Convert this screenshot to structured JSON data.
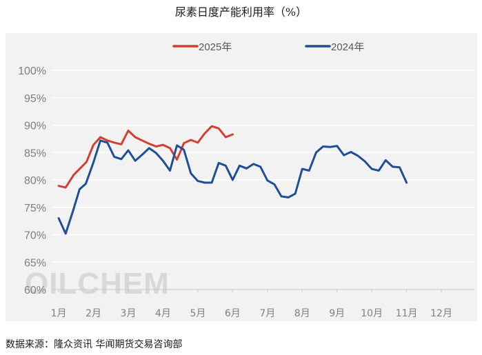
{
  "title": "尿素日度产能利用率（%）",
  "source": "数据来源：隆众资讯  华闻期货交易咨询部",
  "watermark": "OILCHEM",
  "colors": {
    "series_2025": "#d23f31",
    "series_2024": "#1f4e96",
    "grid": "#ffffff",
    "axis": "#c8c8c8",
    "panel": "#f2f2f2"
  },
  "chart_data": {
    "type": "line",
    "title": "尿素日度产能利用率（%）",
    "xlabel": "",
    "ylabel": "",
    "x_categories": [
      "1月",
      "2月",
      "3月",
      "4月",
      "5月",
      "6月",
      "7月",
      "8月",
      "9月",
      "10月",
      "11月",
      "12月"
    ],
    "ylim": [
      60,
      100
    ],
    "y_ticks": [
      60,
      65,
      70,
      75,
      80,
      85,
      90,
      95,
      100
    ],
    "y_tick_labels": [
      "60%",
      "65%",
      "70%",
      "75%",
      "80%",
      "85%",
      "90%",
      "95%",
      "100%"
    ],
    "grid": true,
    "legend_position": "top-center",
    "series": [
      {
        "name": "2025年",
        "color": "#d23f31",
        "x_month": [
          1.0,
          1.2,
          1.43,
          1.8,
          2.0,
          2.2,
          2.4,
          2.6,
          2.8,
          3.0,
          3.2,
          3.4,
          3.6,
          3.8,
          4.0,
          4.2,
          4.4,
          4.6,
          4.8,
          5.0,
          5.2,
          5.4,
          5.6,
          5.8,
          6.0,
          6.2,
          6.4,
          6.6
        ],
        "values": [
          78.9,
          78.6,
          80.9,
          83.3,
          86.4,
          87.8,
          87.2,
          86.8,
          86.5,
          89.0,
          87.8,
          87.2,
          86.6,
          86.1,
          86.4,
          85.8,
          83.7,
          86.7,
          87.3,
          86.8,
          88.5,
          89.8,
          89.4,
          87.8,
          88.3,
          null,
          null,
          null
        ]
      },
      {
        "name": "2024年",
        "color": "#1f4e96",
        "x_month": [
          1.0,
          1.2,
          1.4,
          1.6,
          1.78,
          2.0,
          2.2,
          2.4,
          2.6,
          2.8,
          3.0,
          3.2,
          3.4,
          3.6,
          3.8,
          4.0,
          4.2,
          4.4,
          4.6,
          4.8,
          5.0,
          5.2,
          5.4,
          5.6,
          5.8,
          6.0,
          6.2,
          6.4,
          6.6,
          6.8,
          7.0,
          7.2,
          7.4,
          7.6,
          7.8,
          8.0,
          8.2,
          8.4,
          8.6,
          8.8,
          9.0,
          9.2,
          9.4,
          9.6,
          9.8,
          10.0,
          10.2,
          10.4,
          10.6,
          10.8,
          11.0,
          11.2,
          11.4,
          11.6,
          11.8,
          12.0,
          12.2,
          12.4,
          12.55
        ],
        "values": [
          73.0,
          70.2,
          74.1,
          78.3,
          79.3,
          83.2,
          87.2,
          86.8,
          84.2,
          83.8,
          85.4,
          83.5,
          84.6,
          85.8,
          84.9,
          83.5,
          81.7,
          86.3,
          85.5,
          81.2,
          79.8,
          79.5,
          79.5,
          83.1,
          82.6,
          80.0,
          82.6,
          82.1,
          82.9,
          82.4,
          79.9,
          79.2,
          77.0,
          76.8,
          77.5,
          82.0,
          81.7,
          85.0,
          86.1,
          86.0,
          86.2,
          84.5,
          85.1,
          84.4,
          83.4,
          82.0,
          81.7,
          83.6,
          82.4,
          82.3,
          79.5,
          null,
          null,
          null,
          null,
          null,
          null,
          null,
          null
        ]
      }
    ]
  }
}
